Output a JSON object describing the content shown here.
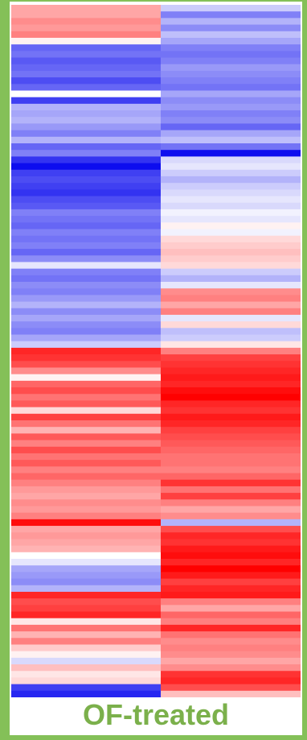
{
  "label": "OF-treated",
  "colors": {
    "frame": "#84c058",
    "label": "#7bb04b",
    "low": "#0000ee",
    "mid": "#ffffff",
    "high": "#ff0000"
  },
  "chart_data": {
    "type": "heatmap",
    "title": "",
    "color_scale": {
      "min": -1,
      "max": 1,
      "low_color": "#0000ee",
      "mid_color": "#ffffff",
      "high_color": "#ff0000"
    },
    "columns": 2,
    "rows": [
      [
        0.35,
        -0.2
      ],
      [
        0.35,
        -0.5
      ],
      [
        0.45,
        -0.3
      ],
      [
        0.4,
        -0.45
      ],
      [
        0.5,
        -0.25
      ],
      [
        0.05,
        -0.35
      ],
      [
        -0.6,
        -0.5
      ],
      [
        -0.55,
        -0.55
      ],
      [
        -0.65,
        -0.5
      ],
      [
        -0.6,
        -0.4
      ],
      [
        -0.55,
        -0.45
      ],
      [
        -0.7,
        -0.5
      ],
      [
        -0.6,
        -0.55
      ],
      [
        0.0,
        -0.35
      ],
      [
        -0.75,
        -0.45
      ],
      [
        -0.3,
        -0.4
      ],
      [
        -0.35,
        -0.5
      ],
      [
        -0.3,
        -0.45
      ],
      [
        -0.4,
        -0.6
      ],
      [
        -0.5,
        -0.35
      ],
      [
        -0.3,
        -0.25
      ],
      [
        -0.6,
        -0.55
      ],
      [
        -0.5,
        -0.95
      ],
      [
        -0.8,
        -0.15
      ],
      [
        -0.95,
        -0.1
      ],
      [
        -0.75,
        -0.2
      ],
      [
        -0.7,
        -0.3
      ],
      [
        -0.75,
        -0.2
      ],
      [
        -0.8,
        -0.15
      ],
      [
        -0.7,
        -0.1
      ],
      [
        -0.65,
        -0.15
      ],
      [
        -0.5,
        -0.05
      ],
      [
        -0.55,
        -0.1
      ],
      [
        -0.6,
        0.05
      ],
      [
        -0.5,
        -0.05
      ],
      [
        -0.55,
        0.15
      ],
      [
        -0.5,
        0.2
      ],
      [
        -0.6,
        0.25
      ],
      [
        -0.45,
        0.2
      ],
      [
        -0.1,
        0.15
      ],
      [
        -0.5,
        -0.2
      ],
      [
        -0.55,
        -0.3
      ],
      [
        -0.45,
        -0.1
      ],
      [
        -0.5,
        0.45
      ],
      [
        -0.4,
        0.5
      ],
      [
        -0.3,
        0.35
      ],
      [
        -0.45,
        0.5
      ],
      [
        -0.35,
        -0.1
      ],
      [
        -0.45,
        0.15
      ],
      [
        -0.5,
        -0.25
      ],
      [
        -0.35,
        -0.2
      ],
      [
        -0.2,
        0.1
      ],
      [
        0.85,
        0.5
      ],
      [
        0.8,
        0.75
      ],
      [
        0.7,
        0.8
      ],
      [
        0.45,
        0.85
      ],
      [
        0.05,
        0.9
      ],
      [
        0.6,
        0.85
      ],
      [
        0.7,
        0.95
      ],
      [
        0.55,
        1.0
      ],
      [
        0.65,
        0.85
      ],
      [
        0.15,
        0.8
      ],
      [
        0.75,
        0.9
      ],
      [
        0.55,
        0.85
      ],
      [
        0.3,
        0.75
      ],
      [
        0.65,
        0.7
      ],
      [
        0.5,
        0.65
      ],
      [
        0.7,
        0.6
      ],
      [
        0.55,
        0.55
      ],
      [
        0.65,
        0.55
      ],
      [
        0.5,
        0.5
      ],
      [
        0.6,
        0.6
      ],
      [
        0.5,
        0.8
      ],
      [
        0.4,
        0.55
      ],
      [
        0.35,
        0.75
      ],
      [
        0.45,
        0.5
      ],
      [
        0.4,
        0.35
      ],
      [
        0.5,
        0.45
      ],
      [
        0.95,
        -0.3
      ],
      [
        0.35,
        0.7
      ],
      [
        0.4,
        0.85
      ],
      [
        0.35,
        0.8
      ],
      [
        0.3,
        0.9
      ],
      [
        0.0,
        0.95
      ],
      [
        -0.1,
        0.85
      ],
      [
        -0.35,
        1.0
      ],
      [
        -0.4,
        0.9
      ],
      [
        -0.45,
        0.75
      ],
      [
        -0.3,
        0.85
      ],
      [
        0.85,
        0.9
      ],
      [
        0.7,
        0.5
      ],
      [
        0.75,
        0.35
      ],
      [
        0.85,
        0.6
      ],
      [
        0.1,
        0.5
      ],
      [
        0.55,
        0.85
      ],
      [
        0.3,
        0.55
      ],
      [
        0.5,
        0.45
      ],
      [
        0.2,
        0.5
      ],
      [
        0.05,
        0.45
      ],
      [
        -0.15,
        0.35
      ],
      [
        0.25,
        0.45
      ],
      [
        0.1,
        0.8
      ],
      [
        0.15,
        0.85
      ],
      [
        -0.75,
        0.7
      ],
      [
        -0.85,
        0.25
      ]
    ]
  }
}
